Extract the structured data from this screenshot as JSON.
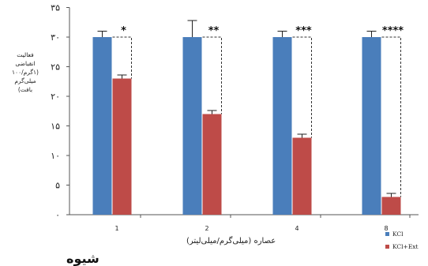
{
  "chart_data": {
    "type": "bar",
    "title": "",
    "xlabel": "عصاره (میلی‌گرم/میلی‌لیتر)",
    "ylabel": "فعالیت\nانقباضی\n(۱گرم/۱۰۰\nمیلی‌گرم\nبافت)",
    "categories": [
      "1",
      "2",
      "4",
      "8"
    ],
    "ylim": [
      0,
      35
    ],
    "yticks": [
      "۰",
      "۵",
      "۱۰",
      "۱۵",
      "۲۰",
      "۲۵",
      "۳۰",
      "۳۵"
    ],
    "ytick_values": [
      0,
      5,
      10,
      15,
      20,
      25,
      30,
      35
    ],
    "grid": false,
    "legend_position": "bottom-right",
    "series": [
      {
        "name": "KCl",
        "color": "#4a7ebb",
        "values": [
          30,
          30,
          30,
          30
        ],
        "errors": [
          1.0,
          2.8,
          1.0,
          1.0
        ]
      },
      {
        "name": "KCl+Ext",
        "color": "#be4b48",
        "values": [
          23,
          17,
          13,
          3
        ],
        "errors": [
          0.6,
          0.6,
          0.6,
          0.6
        ]
      }
    ],
    "significance": [
      "*",
      "**",
      "***",
      "****"
    ]
  },
  "cut_text": "شیوه"
}
